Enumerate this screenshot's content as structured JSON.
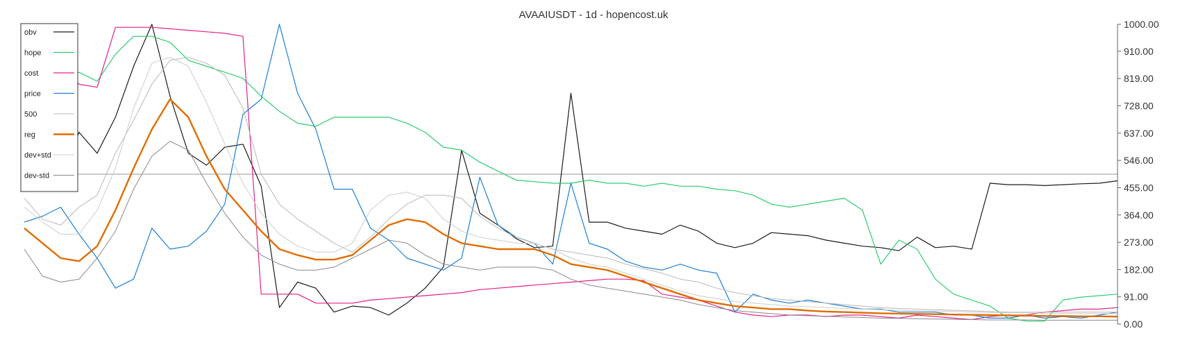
{
  "chart_data": {
    "type": "line",
    "title": "AVAAIUSDT - 1d - hopencost.uk",
    "xlabel": "",
    "ylabel": "",
    "ylim": [
      0,
      1000
    ],
    "yticks": [
      "1000.00",
      "910.00",
      "819.00",
      "728.00",
      "637.00",
      "546.00",
      "455.00",
      "364.00",
      "273.00",
      "182.00",
      "91.00",
      "0.00"
    ],
    "grid": false,
    "legend_position": "top-left",
    "reference_line": 500,
    "x": [
      0,
      5,
      10,
      15,
      20,
      25,
      30,
      35,
      40,
      45,
      50,
      55,
      60,
      65,
      70,
      75,
      80,
      85,
      90,
      95,
      100,
      105,
      110,
      115,
      120,
      125,
      130,
      135,
      140,
      145,
      150,
      155,
      160,
      165,
      170,
      175,
      180,
      185,
      190,
      195,
      200,
      205,
      210,
      215,
      220,
      225,
      230,
      235,
      240,
      245,
      250,
      255,
      260,
      265,
      270,
      275,
      280,
      285,
      290,
      295,
      300
    ],
    "series": [
      {
        "name": "obv",
        "color": "#1a1a1a",
        "width": 1.2,
        "values": [
          610,
          545,
          470,
          640,
          570,
          690,
          860,
          1000,
          760,
          570,
          530,
          590,
          600,
          460,
          55,
          140,
          120,
          40,
          60,
          55,
          30,
          70,
          120,
          190,
          580,
          370,
          330,
          285,
          255,
          260,
          770,
          340,
          340,
          320,
          310,
          300,
          330,
          310,
          270,
          255,
          270,
          305,
          300,
          295,
          280,
          270,
          260,
          255,
          245,
          290,
          255,
          260,
          250,
          470,
          465,
          465,
          462,
          465,
          468,
          470,
          478
        ]
      },
      {
        "name": "hope",
        "color": "#2ecc71",
        "width": 1.2,
        "values": [
          880,
          820,
          810,
          840,
          810,
          900,
          960,
          960,
          940,
          880,
          860,
          840,
          820,
          760,
          710,
          670,
          660,
          690,
          690,
          690,
          690,
          670,
          640,
          590,
          580,
          540,
          510,
          480,
          475,
          470,
          470,
          480,
          470,
          470,
          460,
          470,
          460,
          460,
          450,
          445,
          430,
          400,
          390,
          400,
          410,
          420,
          380,
          200,
          280,
          250,
          150,
          100,
          80,
          60,
          20,
          10,
          10,
          80,
          90,
          95,
          100
        ]
      },
      {
        "name": "cost",
        "color": "#e0218a",
        "width": 1.2,
        "values": [
          890,
          880,
          870,
          800,
          790,
          990,
          990,
          990,
          985,
          980,
          975,
          970,
          960,
          100,
          100,
          100,
          70,
          70,
          70,
          80,
          85,
          90,
          95,
          100,
          105,
          115,
          120,
          125,
          130,
          135,
          140,
          145,
          150,
          150,
          145,
          100,
          90,
          80,
          60,
          40,
          30,
          25,
          30,
          30,
          25,
          30,
          30,
          25,
          20,
          30,
          25,
          20,
          15,
          25,
          30,
          30,
          40,
          45,
          50,
          50,
          55
        ]
      },
      {
        "name": "price",
        "color": "#1a7fd4",
        "width": 1.2,
        "values": [
          340,
          360,
          390,
          300,
          220,
          120,
          150,
          320,
          250,
          260,
          310,
          400,
          700,
          750,
          1000,
          770,
          650,
          450,
          450,
          320,
          280,
          220,
          200,
          180,
          220,
          490,
          330,
          290,
          270,
          200,
          470,
          270,
          250,
          210,
          190,
          180,
          200,
          180,
          170,
          40,
          100,
          80,
          70,
          80,
          70,
          60,
          50,
          50,
          40,
          40,
          40,
          30,
          30,
          20,
          20,
          30,
          20,
          25,
          20,
          30,
          40
        ]
      },
      {
        "name": "500",
        "color": "#b8b8b8",
        "width": 1.0,
        "values": [
          420,
          350,
          330,
          390,
          430,
          570,
          680,
          800,
          880,
          890,
          870,
          830,
          720,
          500,
          400,
          350,
          310,
          270,
          240,
          290,
          350,
          400,
          430,
          430,
          420,
          360,
          320,
          290,
          270,
          250,
          240,
          230,
          220,
          200,
          185,
          170,
          150,
          140,
          120,
          105,
          95,
          85,
          80,
          75,
          70,
          65,
          60,
          55,
          52,
          50,
          48,
          46,
          44,
          42,
          40,
          40,
          40,
          40,
          40,
          40,
          40
        ]
      },
      {
        "name": "reg",
        "color": "#e06c00",
        "width": 2.4,
        "values": [
          320,
          270,
          220,
          210,
          260,
          380,
          520,
          650,
          750,
          690,
          560,
          450,
          380,
          310,
          250,
          230,
          215,
          215,
          230,
          280,
          330,
          350,
          340,
          300,
          270,
          260,
          250,
          250,
          250,
          230,
          200,
          190,
          180,
          160,
          140,
          120,
          100,
          80,
          70,
          60,
          55,
          50,
          50,
          45,
          42,
          40,
          38,
          36,
          35,
          34,
          33,
          32,
          31,
          30,
          29,
          28,
          27,
          27,
          26,
          26,
          25
        ]
      },
      {
        "name": "dev+std",
        "color": "#cccccc",
        "width": 1.0,
        "values": [
          390,
          340,
          300,
          300,
          380,
          520,
          720,
          870,
          890,
          860,
          740,
          600,
          470,
          370,
          300,
          260,
          240,
          240,
          270,
          380,
          430,
          440,
          420,
          350,
          310,
          290,
          280,
          270,
          270,
          250,
          220,
          200,
          190,
          170,
          150,
          130,
          110,
          95,
          85,
          75,
          70,
          65,
          60,
          58,
          55,
          52,
          50,
          48,
          46,
          45,
          44,
          42,
          40,
          39,
          38,
          37,
          36,
          35,
          35,
          35,
          35
        ]
      },
      {
        "name": "dev-std",
        "color": "#888888",
        "width": 1.0,
        "values": [
          250,
          160,
          140,
          150,
          220,
          310,
          450,
          560,
          610,
          580,
          470,
          370,
          290,
          230,
          200,
          180,
          180,
          190,
          220,
          250,
          280,
          270,
          230,
          200,
          190,
          180,
          190,
          190,
          190,
          180,
          150,
          130,
          120,
          110,
          100,
          90,
          80,
          65,
          55,
          45,
          40,
          35,
          30,
          28,
          26,
          24,
          22,
          20,
          19,
          18,
          17,
          16,
          15,
          14,
          14,
          14,
          13,
          13,
          13,
          13,
          13
        ]
      }
    ]
  }
}
